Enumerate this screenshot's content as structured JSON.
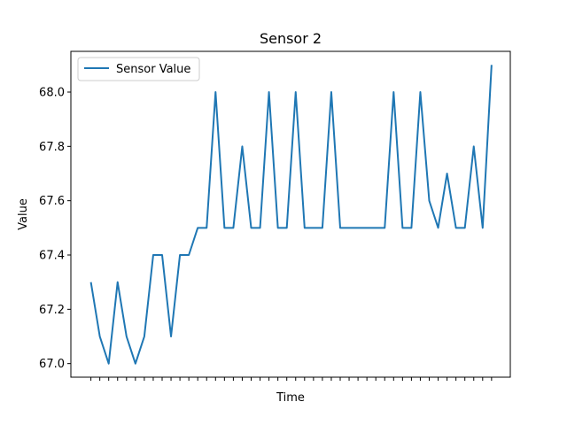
{
  "chart_data": {
    "type": "line",
    "title": "Sensor 2",
    "xlabel": "Time",
    "ylabel": "Value",
    "ylim": [
      66.95,
      68.15
    ],
    "yticks": [
      "67.0",
      "67.2",
      "67.4",
      "67.6",
      "67.8",
      "68.0"
    ],
    "x_tick_labels_shown": false,
    "legend_position": "upper-left",
    "grid": false,
    "series": [
      {
        "name": "Sensor Value",
        "color": "#1f77b4",
        "values": [
          67.3,
          67.1,
          67.0,
          67.3,
          67.1,
          67.0,
          67.1,
          67.4,
          67.4,
          67.1,
          67.4,
          67.4,
          67.5,
          67.5,
          68.0,
          67.5,
          67.5,
          67.8,
          67.5,
          67.5,
          68.0,
          67.5,
          67.5,
          68.0,
          67.5,
          67.5,
          67.5,
          68.0,
          67.5,
          67.5,
          67.5,
          67.5,
          67.5,
          67.5,
          68.0,
          67.5,
          67.5,
          68.0,
          67.6,
          67.5,
          67.7,
          67.5,
          67.5,
          67.8,
          67.5,
          68.1
        ]
      }
    ]
  }
}
